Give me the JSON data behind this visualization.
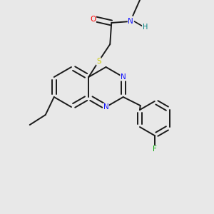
{
  "background_color": "#e8e8e8",
  "bond_color": "#1a1a1a",
  "atom_colors": {
    "N": "#1414ff",
    "O": "#ff0000",
    "S": "#cccc00",
    "F": "#00aa00",
    "H": "#008080",
    "C": "#1a1a1a"
  },
  "figsize": [
    3.0,
    3.0
  ],
  "dpi": 100,
  "lw": 1.4,
  "fs": 7.5
}
